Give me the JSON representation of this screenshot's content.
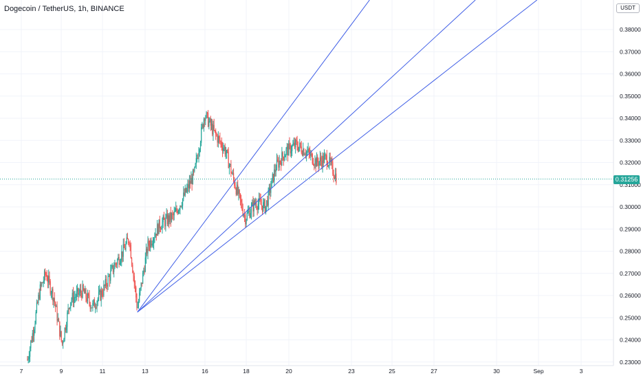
{
  "header": {
    "title": "Dogecoin / TetherUS, 1h, BINANCE",
    "unit_button": "USDT"
  },
  "last_price_label": "0.31256",
  "chart_data": {
    "type": "candlestick",
    "title": "Dogecoin / TetherUS, 1h, BINANCE",
    "y_ticks": [
      "0.38000",
      "0.37000",
      "0.36000",
      "0.35000",
      "0.34000",
      "0.33000",
      "0.32000",
      "0.31000",
      "0.30000",
      "0.29000",
      "0.28000",
      "0.27000",
      "0.26000",
      "0.25000",
      "0.24000",
      "0.23000"
    ],
    "x_ticks": [
      "7",
      "9",
      "11",
      "13",
      "16",
      "18",
      "20",
      "23",
      "25",
      "27",
      "30",
      "Sep",
      "3"
    ],
    "ylim": [
      0.2304,
      0.3975
    ],
    "last_price": 0.31256,
    "grid": true,
    "colors": {
      "up": "#26a69a",
      "down": "#ef5350",
      "fan": "#3f5ee6",
      "grid": "#f0f3fa"
    },
    "approx_path": [
      {
        "x": "7.3",
        "close": 0.231
      },
      {
        "x": "7.6",
        "close": 0.245
      },
      {
        "x": "7.9",
        "close": 0.262
      },
      {
        "x": "8.2",
        "close": 0.27
      },
      {
        "x": "8.6",
        "close": 0.259
      },
      {
        "x": "9.0",
        "close": 0.238
      },
      {
        "x": "9.4",
        "close": 0.258
      },
      {
        "x": "10.0",
        "close": 0.262
      },
      {
        "x": "10.5",
        "close": 0.255
      },
      {
        "x": "11.0",
        "close": 0.262
      },
      {
        "x": "11.6",
        "close": 0.274
      },
      {
        "x": "12.0",
        "close": 0.28
      },
      {
        "x": "12.3",
        "close": 0.286
      },
      {
        "x": "12.7",
        "close": 0.254
      },
      {
        "x": "13.2",
        "close": 0.282
      },
      {
        "x": "13.8",
        "close": 0.292
      },
      {
        "x": "14.5",
        "close": 0.296
      },
      {
        "x": "15.0",
        "close": 0.305
      },
      {
        "x": "15.5",
        "close": 0.315
      },
      {
        "x": "16.0",
        "close": 0.342
      },
      {
        "x": "16.5",
        "close": 0.333
      },
      {
        "x": "17.0",
        "close": 0.326
      },
      {
        "x": "17.5",
        "close": 0.31
      },
      {
        "x": "18.0",
        "close": 0.295
      },
      {
        "x": "18.5",
        "close": 0.302
      },
      {
        "x": "19.0",
        "close": 0.3
      },
      {
        "x": "19.5",
        "close": 0.318
      },
      {
        "x": "20.0",
        "close": 0.325
      },
      {
        "x": "20.5",
        "close": 0.328
      },
      {
        "x": "21.0",
        "close": 0.325
      },
      {
        "x": "21.5",
        "close": 0.32
      },
      {
        "x": "22.0",
        "close": 0.322
      },
      {
        "x": "22.5",
        "close": 0.313
      }
    ],
    "fan_lines": [
      {
        "from": {
          "x": "12.7",
          "y": 0.2525
        },
        "through": {
          "x": "17.6",
          "y": 0.313
        }
      },
      {
        "from": {
          "x": "12.7",
          "y": 0.2525
        },
        "through": {
          "x": "18.3",
          "y": 0.3
        }
      },
      {
        "from": {
          "x": "12.7",
          "y": 0.2525
        },
        "through": {
          "x": "19.6",
          "y": 0.302
        }
      }
    ]
  }
}
